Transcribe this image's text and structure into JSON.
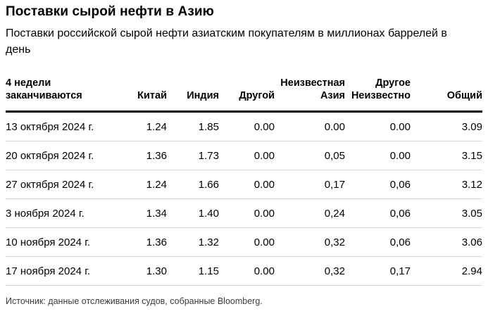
{
  "header": {
    "title": "Поставки сырой нефти в Азию",
    "subtitle": "Поставки российской сырой нефти азиатским покупателям в миллионах баррелей в день"
  },
  "chart_data": {
    "type": "table",
    "title": "Поставки сырой нефти в Азию",
    "subtitle": "Поставки российской сырой нефти азиатским покупателям в миллионах баррелей в день",
    "columns": [
      {
        "line1": "4 недели",
        "line2": "заканчиваются"
      },
      {
        "line1": "",
        "line2": "Китай"
      },
      {
        "line1": "",
        "line2": "Индия"
      },
      {
        "line1": "",
        "line2": "Другой"
      },
      {
        "line1": "Неизвестная",
        "line2": "Азия"
      },
      {
        "line1": "Другое",
        "line2": "Неизвестно"
      },
      {
        "line1": "",
        "line2": "Общий"
      }
    ],
    "rows": [
      [
        "13 октября 2024 г.",
        "1.24",
        "1.85",
        "0.00",
        "0.00",
        "0.00",
        "3.09"
      ],
      [
        "20 октября 2024 г.",
        "1.36",
        "1.73",
        "0.00",
        "0,05",
        "0.00",
        "3.15"
      ],
      [
        "27 октября 2024 г.",
        "1.24",
        "1.66",
        "0.00",
        "0,17",
        "0,06",
        "3.12"
      ],
      [
        "3 ноября 2024 г.",
        "1.34",
        "1.40",
        "0.00",
        "0,24",
        "0,06",
        "3.05"
      ],
      [
        "10 ноября 2024 г.",
        "1.36",
        "1.32",
        "0.00",
        "0,32",
        "0,06",
        "3.06"
      ],
      [
        "17 ноября 2024 г.",
        "1.30",
        "1.15",
        "0.00",
        "0,32",
        "0,17",
        "2.94"
      ]
    ]
  },
  "footer": {
    "source": "Источник: данные отслеживания судов, собранные Bloomberg."
  },
  "colors": {
    "text": "#000000",
    "muted_text": "#3c3c3c",
    "header_rule": "#000000",
    "row_divider": "#d9d9d9",
    "background": "#ffffff"
  }
}
